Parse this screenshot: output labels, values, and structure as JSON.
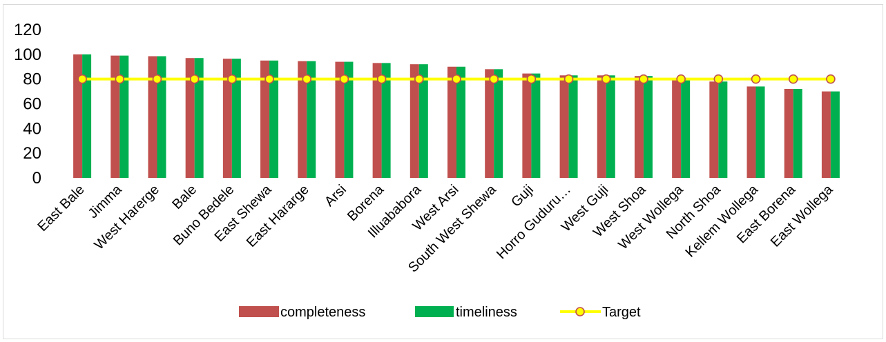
{
  "chart_data": {
    "type": "bar",
    "categories": [
      "East Bale",
      "Jimma",
      "West Harerge",
      "Bale",
      "Buno Bedele",
      "East Shewa",
      "East Hararge",
      "Arsi",
      "Borena",
      "Illuababora",
      "West Arsi",
      "South West Shewa",
      "Guji",
      "Horro Guduru…",
      "West Guji",
      "West Shoa",
      "West Wollega",
      "North Shoa",
      "Kellem Wollega",
      "East Borena",
      "East Wollega"
    ],
    "series": [
      {
        "name": "completeness",
        "type": "bar",
        "color": "#c0504d",
        "values": [
          100,
          99,
          98.5,
          97,
          96.5,
          95,
          94.5,
          94,
          93,
          92,
          90,
          88,
          84.5,
          83,
          83,
          82.5,
          79,
          78,
          74,
          72,
          70
        ]
      },
      {
        "name": "timeliness",
        "type": "bar",
        "color": "#00b050",
        "values": [
          100,
          99,
          98.5,
          97,
          96.5,
          95,
          94.5,
          94,
          93,
          92,
          90,
          88,
          84.5,
          83,
          83,
          82.5,
          79,
          78,
          74,
          72,
          70
        ]
      },
      {
        "name": "Target",
        "type": "line",
        "color": "#ffff00",
        "marker_color": "#c0504d",
        "values": [
          80,
          80,
          80,
          80,
          80,
          80,
          80,
          80,
          80,
          80,
          80,
          80,
          80,
          80,
          80,
          80,
          80,
          80,
          80,
          80,
          80
        ]
      }
    ],
    "y_ticks": [
      "0",
      "20",
      "40",
      "60",
      "80",
      "100",
      "120"
    ],
    "ylim": [
      0,
      120
    ],
    "grid": false,
    "legend_position": "bottom"
  }
}
